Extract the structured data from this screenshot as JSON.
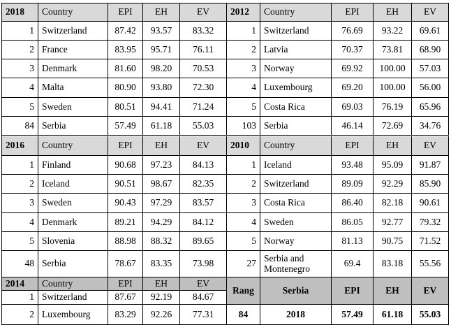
{
  "tables": [
    {
      "left": {
        "header": [
          "2018",
          "Country",
          "EPI",
          "EH",
          "EV"
        ],
        "rows": [
          [
            "1",
            "Switzerland",
            "87.42",
            "93.57",
            "83.32"
          ],
          [
            "2",
            "France",
            "83.95",
            "95.71",
            "76.11"
          ],
          [
            "3",
            "Denmark",
            "81.60",
            "98.20",
            "70.53"
          ],
          [
            "4",
            "Malta",
            "80.90",
            "93.80",
            "72.30"
          ],
          [
            "5",
            "Sweden",
            "80.51",
            "94.41",
            "71.24"
          ],
          [
            "84",
            "Serbia",
            "57.49",
            "61.18",
            "55.03"
          ]
        ]
      },
      "right": {
        "header": [
          "2012",
          "Country",
          "EPI",
          "EH",
          "EV"
        ],
        "rows": [
          [
            "1",
            "Switzerland",
            "76.69",
            "93.22",
            "69.61"
          ],
          [
            "2",
            "Latvia",
            "70.37",
            "73.81",
            "68.90"
          ],
          [
            "3",
            "Norway",
            "69.92",
            "100.00",
            "57.03"
          ],
          [
            "4",
            "Luxembourg",
            "69.20",
            "100.00",
            "56.00"
          ],
          [
            "5",
            "Costa Rica",
            "69.03",
            "76.19",
            "65.96"
          ],
          [
            "103",
            "Serbia",
            "46.14",
            "72.69",
            "34.76"
          ]
        ]
      }
    },
    {
      "left": {
        "header": [
          "2016",
          "Country",
          "EPI",
          "EH",
          "EV"
        ],
        "rows": [
          [
            "1",
            "Finland",
            "90.68",
            "97.23",
            "84.13"
          ],
          [
            "2",
            "Iceland",
            "90.51",
            "98.67",
            "82.35"
          ],
          [
            "3",
            "Sweden",
            "90.43",
            "97.29",
            "83.57"
          ],
          [
            "4",
            "Denmark",
            "89.21",
            "94.29",
            "84.12"
          ],
          [
            "5",
            "Slovenia",
            "88.98",
            "88.32",
            "89.65"
          ],
          [
            "48",
            "Serbia",
            "78.67",
            "83.35",
            "73.98"
          ]
        ]
      },
      "right": {
        "header": [
          "2010",
          "Country",
          "EPI",
          "EH",
          "EV"
        ],
        "rows": [
          [
            "1",
            "Iceland",
            "93.48",
            "95.09",
            "91.87"
          ],
          [
            "2",
            "Switzerland",
            "89.09",
            "92.29",
            "85.90"
          ],
          [
            "3",
            "Costa Rica",
            "86.40",
            "82.18",
            "90.61"
          ],
          [
            "4",
            "Sweden",
            "86.05",
            "92.77",
            "79.32"
          ],
          [
            "5",
            "Norway",
            "81.13",
            "90.75",
            "71.52"
          ],
          [
            "27",
            "Serbia and Montenegro",
            "69.4",
            "83.18",
            "55.56"
          ]
        ]
      }
    },
    {
      "left": {
        "header": [
          "2014",
          "Country",
          "EPI",
          "EH",
          "EV"
        ],
        "rows": [
          [
            "1",
            "Switzerland",
            "87.67",
            "92.19",
            "84.67"
          ],
          [
            "2",
            "Luxembourg",
            "83.29",
            "92.26",
            "77.31"
          ]
        ]
      },
      "right": {
        "header": [
          "Rang",
          "Serbia",
          "EPI",
          "EH",
          "EV"
        ],
        "rows": [
          [
            "84",
            "2018",
            "57.49",
            "61.18",
            "55.03"
          ]
        ]
      }
    }
  ]
}
